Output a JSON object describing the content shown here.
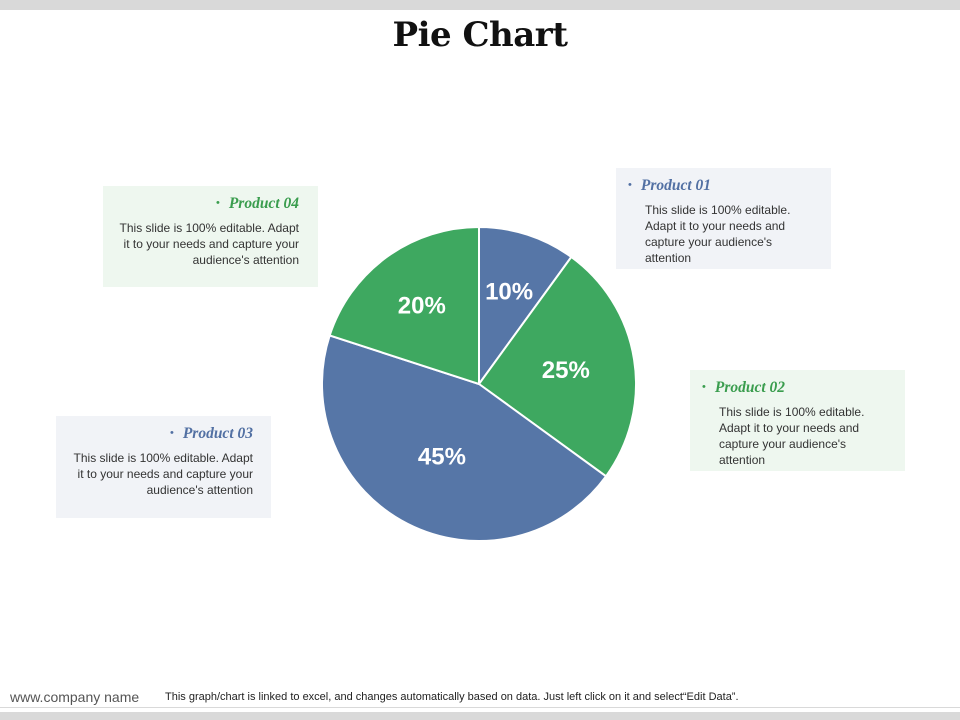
{
  "title": "Pie Chart",
  "chart_data": {
    "type": "pie",
    "title": "Pie Chart",
    "start_angle_deg": 0,
    "direction": "clockwise",
    "slices": [
      {
        "label": "Product 01",
        "value": 10,
        "display": "10%",
        "color": "#5676a7"
      },
      {
        "label": "Product 02",
        "value": 25,
        "display": "25%",
        "color": "#3ea860"
      },
      {
        "label": "Product 03",
        "value": 45,
        "display": "45%",
        "color": "#5676a7"
      },
      {
        "label": "Product 04",
        "value": 20,
        "display": "20%",
        "color": "#3ea860"
      }
    ]
  },
  "callouts": {
    "product01": {
      "bullet": "•",
      "name": "Product 01",
      "desc": "This slide is 100% editable. Adapt it to your needs and capture your audience's attention"
    },
    "product02": {
      "bullet": "•",
      "name": "Product 02",
      "desc": "This slide is 100% editable. Adapt it to your needs and capture your audience's attention"
    },
    "product03": {
      "bullet": "•",
      "name": "Product 03",
      "desc": "This slide is 100% editable. Adapt it to your needs and capture your audience's attention"
    },
    "product04": {
      "bullet": "•",
      "name": "Product 04",
      "desc": "This slide is 100% editable. Adapt it to your needs and capture your audience's attention"
    }
  },
  "footer": {
    "company": "www.company name",
    "note": "This graph/chart is linked to excel, and changes automatically based on data. Just left click on it and select“Edit Data”."
  },
  "colors": {
    "blue": "#5676a7",
    "green": "#3ea860",
    "green_box": "#eef7ef",
    "blue_box": "#f1f3f7",
    "bar_gray": "#d9d9d9"
  }
}
